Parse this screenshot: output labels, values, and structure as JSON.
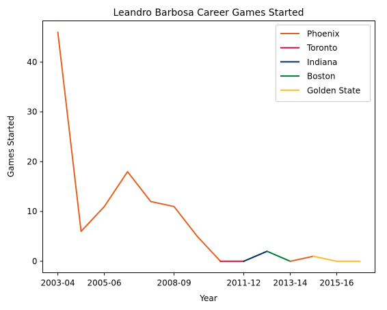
{
  "chart_data": {
    "type": "line",
    "title": "Leandro Barbosa Career Games Started",
    "xlabel": "Year",
    "ylabel": "Games Started",
    "x": [
      "2003-04",
      "2004-05",
      "2005-06",
      "2006-07",
      "2007-08",
      "2008-09",
      "2009-10",
      "2010-11",
      "2011-12",
      "2012-13",
      "2013-14",
      "2014-15",
      "2015-16",
      "2016-17"
    ],
    "x_ticks": [
      "2003-04",
      "2005-06",
      "2008-09",
      "2011-12",
      "2013-14",
      "2015-16"
    ],
    "ylim": [
      -2.3,
      48.3
    ],
    "y_ticks": [
      0,
      10,
      20,
      30,
      40
    ],
    "grid": false,
    "legend_position": "top-right",
    "series": [
      {
        "name": "Phoenix",
        "color": "#E56020",
        "values": [
          [
            0,
            46
          ],
          [
            1,
            6
          ],
          [
            2,
            11
          ],
          [
            3,
            18
          ],
          [
            4,
            12
          ],
          [
            5,
            11
          ],
          [
            6,
            5
          ],
          [
            7,
            0
          ]
        ]
      },
      {
        "name": "Toronto",
        "color": "#CE1141",
        "values": [
          [
            7,
            0
          ],
          [
            8,
            0
          ]
        ]
      },
      {
        "name": "Indiana",
        "color": "#002D62",
        "values": [
          [
            8,
            0
          ],
          [
            9,
            2
          ]
        ]
      },
      {
        "name": "Boston",
        "color": "#007A33",
        "values": [
          [
            9,
            2
          ],
          [
            10,
            0
          ]
        ]
      },
      {
        "name": "Phoenix",
        "color": "#E56020",
        "values": [
          [
            10,
            0
          ],
          [
            11,
            1
          ]
        ]
      },
      {
        "name": "Golden State",
        "color": "#FDB927",
        "values": [
          [
            11,
            1
          ],
          [
            12,
            0
          ],
          [
            13,
            0
          ]
        ]
      }
    ],
    "legend": [
      {
        "name": "Phoenix",
        "color": "#E56020"
      },
      {
        "name": "Toronto",
        "color": "#CE1141"
      },
      {
        "name": "Indiana",
        "color": "#002D62"
      },
      {
        "name": "Boston",
        "color": "#007A33"
      },
      {
        "name": "Golden State",
        "color": "#FDB927"
      }
    ]
  }
}
